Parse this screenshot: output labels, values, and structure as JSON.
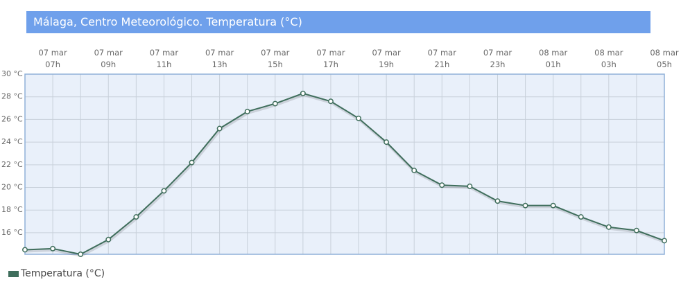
{
  "chart_data": {
    "type": "line",
    "title": "Málaga, Centro Meteorológico. Temperatura (°C)",
    "categories": [
      null,
      "07 mar\n07h",
      null,
      "07 mar\n09h",
      null,
      "07 mar\n11h",
      null,
      "07 mar\n13h",
      null,
      "07 mar\n15h",
      null,
      "07 mar\n17h",
      null,
      "07 mar\n19h",
      null,
      "07 mar\n21h",
      null,
      "07 mar\n23h",
      null,
      "08 mar\n01h",
      null,
      "08 mar\n03h",
      null,
      "08 mar\n05h"
    ],
    "series": [
      {
        "name": "Temperatura (°C)",
        "color": "#3f6e5c",
        "values": [
          14.5,
          14.6,
          14.1,
          15.4,
          17.4,
          19.7,
          22.2,
          25.2,
          26.7,
          27.4,
          28.3,
          27.6,
          26.1,
          24.0,
          21.5,
          20.2,
          20.1,
          18.8,
          18.4,
          18.4,
          17.4,
          16.5,
          16.2,
          15.3
        ]
      }
    ],
    "ylim": [
      14.1,
      30
    ],
    "yticks": [
      {
        "value": 16,
        "label": "16 °C"
      },
      {
        "value": 18,
        "label": "18 °C"
      },
      {
        "value": 20,
        "label": "20 °C"
      },
      {
        "value": 22,
        "label": "22 °C"
      },
      {
        "value": 24,
        "label": "24 °C"
      },
      {
        "value": 26,
        "label": "26 °C"
      },
      {
        "value": 28,
        "label": "28 °C"
      },
      {
        "value": 30,
        "label": "30 °C"
      }
    ],
    "grid": true
  }
}
